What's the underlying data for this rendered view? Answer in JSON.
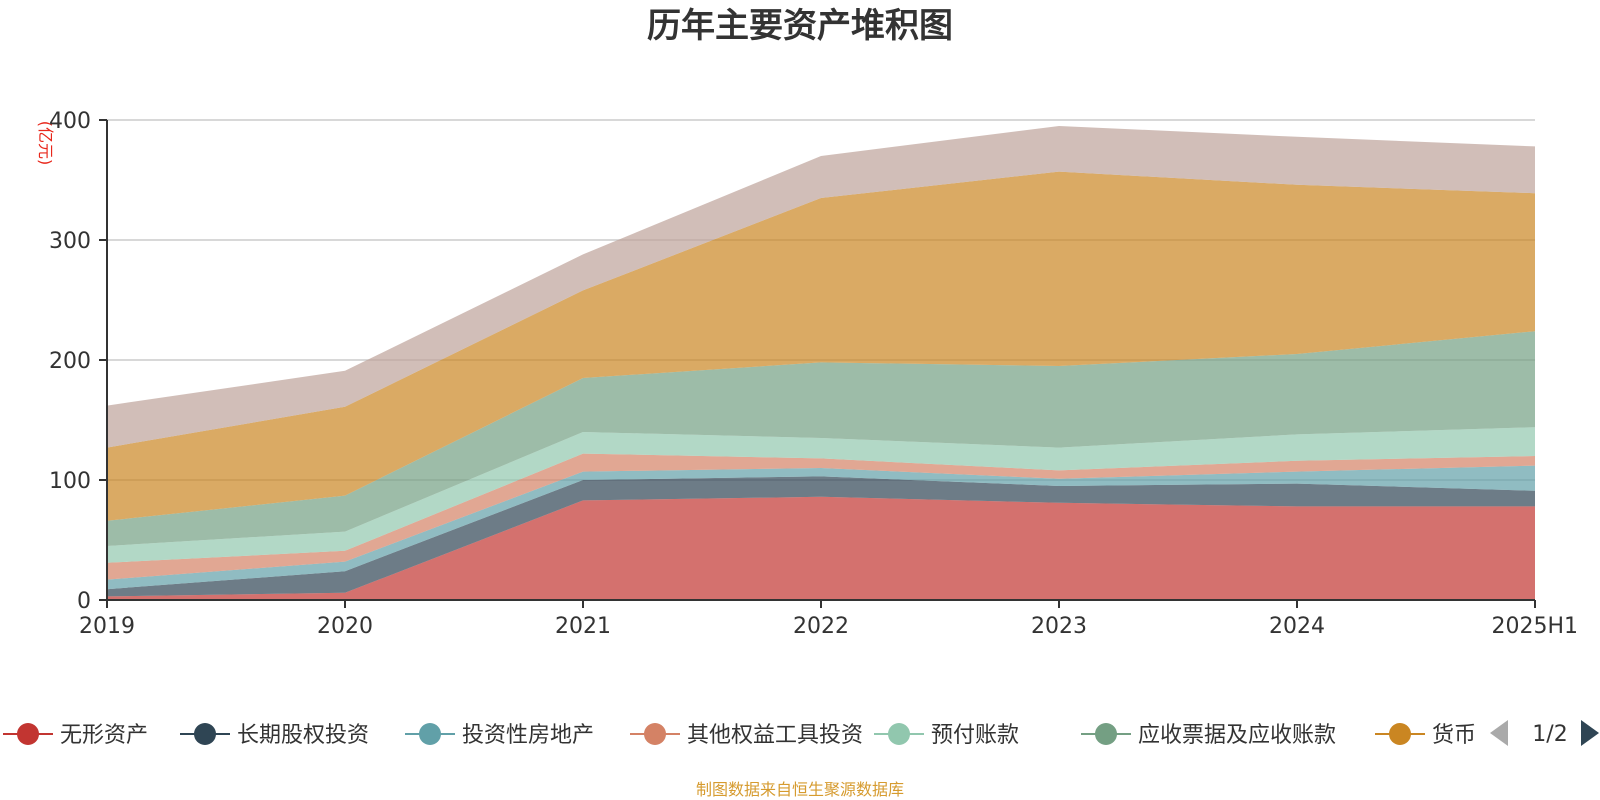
{
  "chart_data": {
    "type": "area",
    "title": "历年主要资产堆积图",
    "unit_label": "(亿元)",
    "categories": [
      "2019",
      "2020",
      "2021",
      "2022",
      "2023",
      "2024",
      "2025H1"
    ],
    "ylim": [
      0,
      400
    ],
    "yticks": [
      "0",
      "100",
      "200",
      "300",
      "400"
    ],
    "grid": true,
    "stacked": true,
    "series": [
      {
        "name": "无形资产",
        "color": "#c23531",
        "values": [
          3,
          6,
          83,
          86,
          81,
          78,
          78
        ]
      },
      {
        "name": "长期股权投资",
        "color": "#2f4554",
        "values": [
          6,
          18,
          17,
          17,
          14,
          19,
          13
        ]
      },
      {
        "name": "投资性房地产",
        "color": "#61a0a8",
        "values": [
          8,
          8,
          7,
          7,
          6,
          10,
          21
        ]
      },
      {
        "name": "其他权益工具投资",
        "color": "#d48265",
        "values": [
          14,
          9,
          15,
          8,
          7,
          9,
          8
        ]
      },
      {
        "name": "预付账款",
        "color": "#91c7ae",
        "values": [
          14,
          16,
          18,
          17,
          19,
          22,
          24
        ]
      },
      {
        "name": "应收票据及应收账款",
        "color": "#749f83",
        "values": [
          21,
          30,
          45,
          63,
          68,
          67,
          80
        ]
      },
      {
        "name": "货币",
        "color": "#ca8622",
        "values": [
          61,
          74,
          73,
          137,
          162,
          141,
          115
        ]
      },
      {
        "name": "",
        "color": "#bda29a",
        "values": [
          35,
          30,
          30,
          35,
          38,
          40,
          39
        ]
      }
    ],
    "legend": {
      "position": "bottom",
      "page": "1/2",
      "visible": [
        "无形资产",
        "长期股权投资",
        "投资性房地产",
        "其他权益工具投资",
        "预付账款",
        "应收票据及应收账款",
        "货币"
      ]
    },
    "source": "制图数据来自恒生聚源数据库"
  }
}
